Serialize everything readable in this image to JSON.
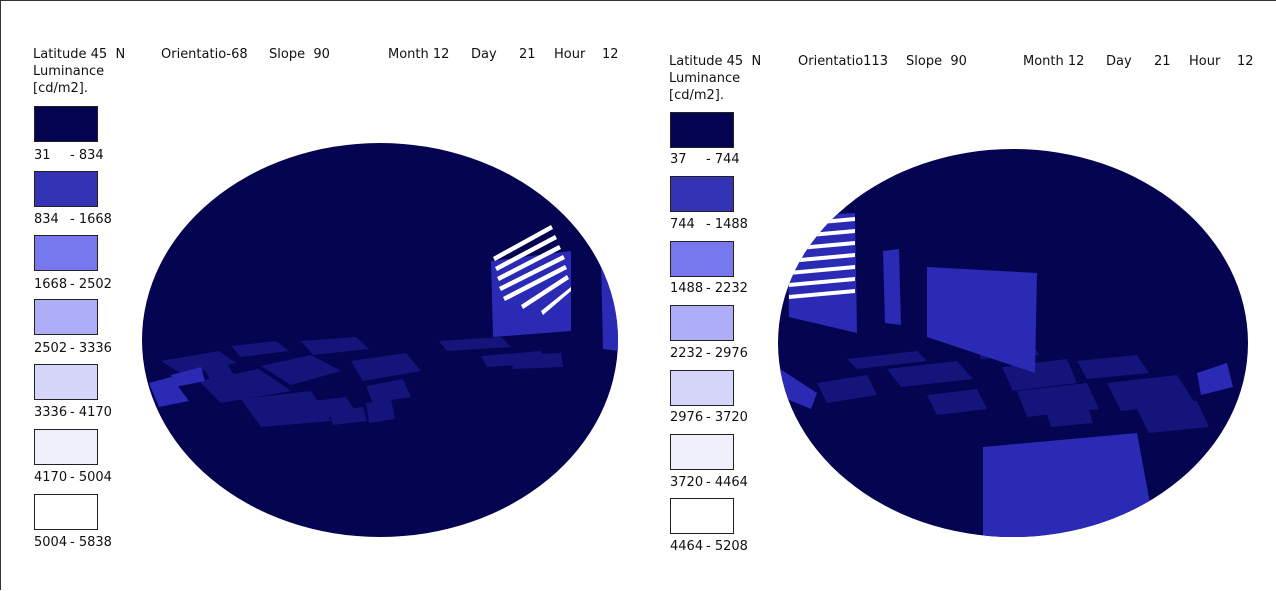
{
  "panels": [
    {
      "latitude_label": "Latitude 45  N",
      "orientation_label": "Orientatio-68",
      "slope_label": "Slope  90",
      "month_label": "Month 12",
      "day_label": "Day",
      "day_value": "21",
      "hour_label": "Hour",
      "hour_value": "12",
      "luminance_label": "Luminance",
      "unit_label": "[cd/m2].",
      "legend": [
        {
          "from": "31",
          "to": "- 834",
          "color": "#030352"
        },
        {
          "from": "834",
          "to": "- 1668",
          "color": "#3333b4"
        },
        {
          "from": "1668",
          "to": "- 2502",
          "color": "#7878ee"
        },
        {
          "from": "2502",
          "to": "- 3336",
          "color": "#aeaef8"
        },
        {
          "from": "3336",
          "to": "- 4170",
          "color": "#d6d6fb"
        },
        {
          "from": "4170",
          "to": "- 5004",
          "color": "#f0f0fd"
        },
        {
          "from": "5004",
          "to": "- 5838",
          "color": "#ffffff"
        }
      ]
    },
    {
      "latitude_label": "Latitude 45  N",
      "orientation_label": "Orientatio113",
      "slope_label": "Slope  90",
      "month_label": "Month 12",
      "day_label": "Day",
      "day_value": "21",
      "hour_label": "Hour",
      "hour_value": "12",
      "luminance_label": "Luminance",
      "unit_label": "[cd/m2].",
      "legend": [
        {
          "from": "37",
          "to": "- 744",
          "color": "#030352"
        },
        {
          "from": "744",
          "to": "- 1488",
          "color": "#3333b4"
        },
        {
          "from": "1488",
          "to": "- 2232",
          "color": "#7878ee"
        },
        {
          "from": "2232",
          "to": "- 2976",
          "color": "#aeaef8"
        },
        {
          "from": "2976",
          "to": "- 3720",
          "color": "#d6d6fb"
        },
        {
          "from": "3720",
          "to": "- 4464",
          "color": "#f0f0fd"
        },
        {
          "from": "4464",
          "to": "- 5208",
          "color": "#ffffff"
        }
      ]
    }
  ],
  "colors": {
    "sky_dark": "#040451",
    "ground_patch": "#14147a",
    "facade": "#2a2ab5",
    "window_light": "#ffffff"
  }
}
